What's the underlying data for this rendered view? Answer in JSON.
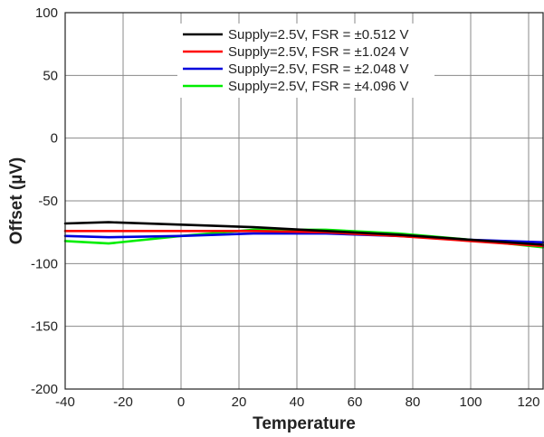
{
  "chart_data": {
    "type": "line",
    "title": "",
    "xlabel": "Temperature",
    "ylabel": "Offset (µV)",
    "xlim": [
      -40,
      125
    ],
    "ylim": [
      -200,
      100
    ],
    "x_ticks": [
      -40,
      -20,
      0,
      20,
      40,
      60,
      80,
      100,
      120
    ],
    "y_ticks": [
      100,
      50,
      0,
      -50,
      -100,
      -150,
      -200
    ],
    "grid": true,
    "legend_position": "top-center",
    "series": [
      {
        "name": "Supply=2.5V, FSR = ±0.512 V",
        "color": "#000000",
        "x": [
          -40,
          -25,
          0,
          25,
          50,
          75,
          100,
          125
        ],
        "y": [
          -68,
          -67,
          -69,
          -71,
          -74,
          -77,
          -81,
          -85
        ]
      },
      {
        "name": "Supply=2.5V, FSR = ±1.024 V",
        "color": "#ff0000",
        "x": [
          -40,
          -25,
          0,
          25,
          50,
          75,
          100,
          125
        ],
        "y": [
          -74,
          -74,
          -74,
          -74,
          -75,
          -78,
          -82,
          -86
        ]
      },
      {
        "name": "Supply=2.5V, FSR = ±2.048 V",
        "color": "#0000dd",
        "x": [
          -40,
          -25,
          0,
          25,
          50,
          75,
          100,
          125
        ],
        "y": [
          -78,
          -79,
          -78,
          -76,
          -76,
          -78,
          -81,
          -83
        ]
      },
      {
        "name": "Supply=2.5V, FSR = ±4.096 V",
        "color": "#00ee00",
        "x": [
          -40,
          -25,
          0,
          25,
          50,
          75,
          100,
          125
        ],
        "y": [
          -82,
          -84,
          -78,
          -73,
          -73,
          -76,
          -81,
          -87
        ]
      }
    ]
  }
}
